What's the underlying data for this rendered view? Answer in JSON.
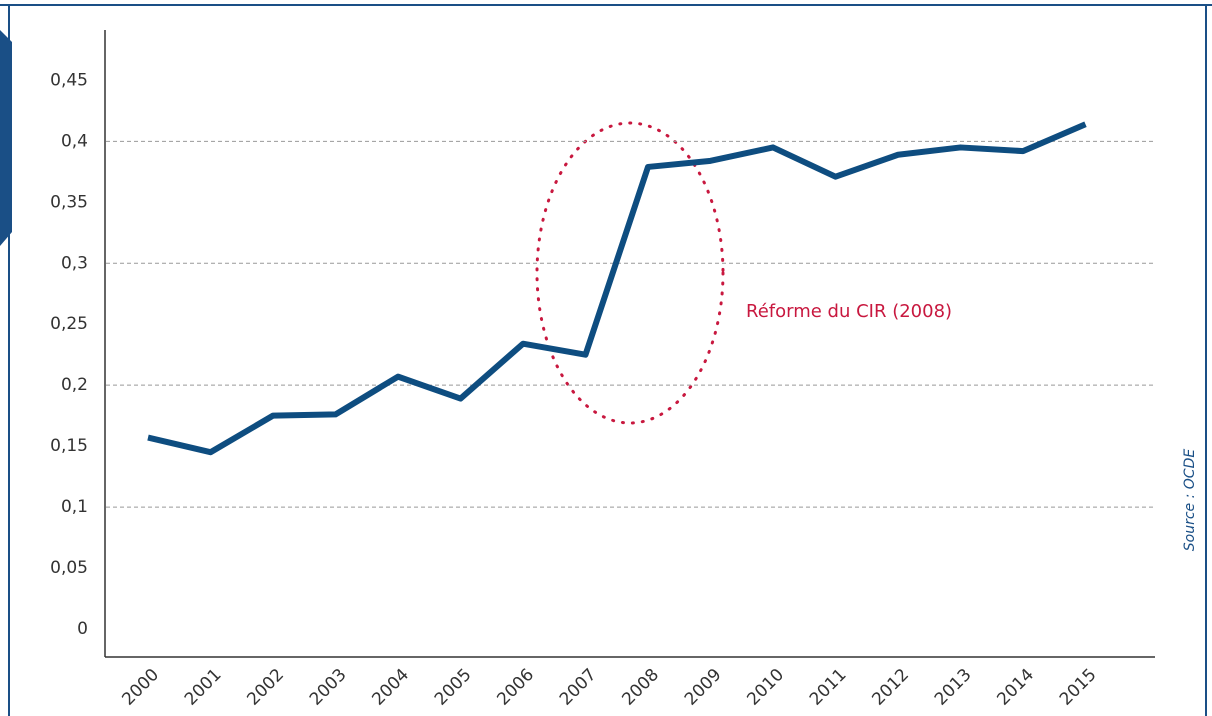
{
  "chart_data": {
    "type": "line",
    "categories": [
      "2000",
      "2001",
      "2002",
      "2003",
      "2004",
      "2005",
      "2006",
      "2007",
      "2008",
      "2009",
      "2010",
      "2011",
      "2012",
      "2013",
      "2014",
      "2015"
    ],
    "series": [
      {
        "color": "#0e4d80",
        "values": [
          0.157,
          0.145,
          0.175,
          0.176,
          0.207,
          0.189,
          0.234,
          0.225,
          0.379,
          0.384,
          0.395,
          0.371,
          0.389,
          0.395,
          0.392,
          0.414
        ]
      }
    ],
    "ylim": [
      0,
      0.47
    ],
    "yticks": [
      0,
      {
        "value": 0.05,
        "label": "0,05"
      },
      {
        "value": 0.1,
        "label": "0,1"
      },
      {
        "value": 0.15,
        "label": "0,15"
      },
      {
        "value": 0.2,
        "label": "0,2"
      },
      {
        "value": 0.25,
        "label": "0,25"
      },
      {
        "value": 0.3,
        "label": "0,3"
      },
      {
        "value": 0.35,
        "label": "0,35"
      },
      {
        "value": 0.4,
        "label": "0,4"
      },
      {
        "value": 0.45,
        "label": "0,45"
      }
    ],
    "grid_ticks": [
      0.1,
      0.2,
      0.3,
      0.4
    ],
    "annotation": "Réforme du CIR (2008)",
    "source": "Source : OCDE"
  }
}
